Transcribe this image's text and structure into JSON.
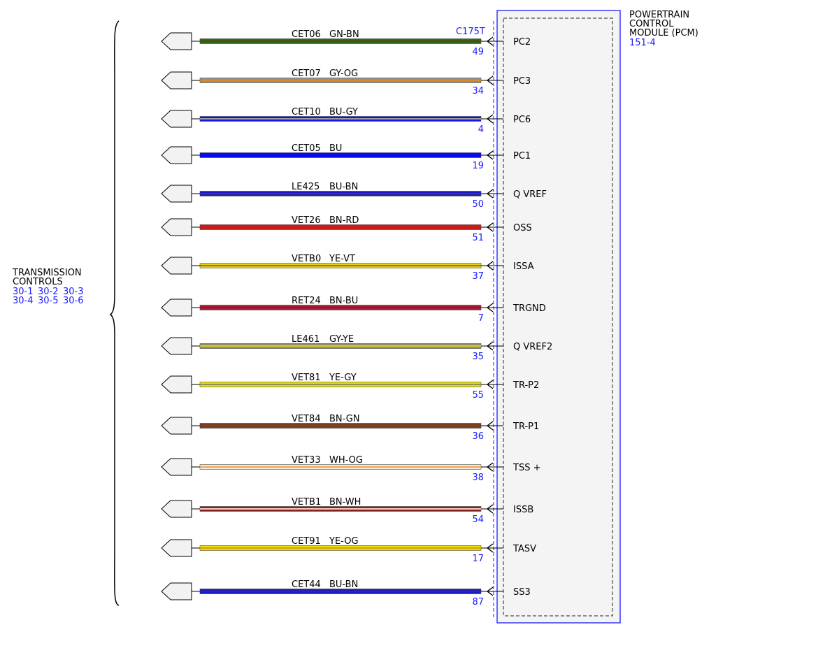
{
  "left_group": {
    "title_lines": [
      "TRANSMISSION",
      "CONTROLS"
    ],
    "ref_rows": [
      [
        "30-1",
        "30-2",
        "30-3"
      ],
      [
        "30-4",
        "30-5",
        "30-6"
      ]
    ]
  },
  "module": {
    "title_lines": [
      "POWERTRAIN",
      "CONTROL",
      "MODULE (PCM)"
    ],
    "ref": "151-4",
    "connector": "C175T"
  },
  "wires": [
    {
      "circuit": "CET06",
      "color_code": "GN-BN",
      "pin": "49",
      "signal": "PC2",
      "base": "#2e6b16",
      "stripe": "#6b3c1a"
    },
    {
      "circuit": "CET07",
      "color_code": "GY-OG",
      "pin": "34",
      "signal": "PC3",
      "base": "#8f8f8f",
      "stripe": "#d98a2b"
    },
    {
      "circuit": "CET10",
      "color_code": "BU-GY",
      "pin": "4",
      "signal": "PC6",
      "base": "#1414e6",
      "stripe": "#9a9a9a"
    },
    {
      "circuit": "CET05",
      "color_code": "BU",
      "pin": "19",
      "signal": "PC1",
      "base": "#0a0af0",
      "stripe": null
    },
    {
      "circuit": "LE425",
      "color_code": "BU-BN",
      "pin": "50",
      "signal": "Q VREF",
      "base": "#1a1acc",
      "stripe": "#5a3a1a"
    },
    {
      "circuit": "VET26",
      "color_code": "BN-RD",
      "pin": "51",
      "signal": "OSS",
      "base": "#cc1a1a",
      "stripe": null
    },
    {
      "circuit": "VETB0",
      "color_code": "YE-VT",
      "pin": "37",
      "signal": "ISSA",
      "base": "#e8d200",
      "stripe": "#8a5fb3"
    },
    {
      "circuit": "RET24",
      "color_code": "BN-BU",
      "pin": "7",
      "signal": "TRGND",
      "base": "#b01a2a",
      "stripe": "#2a2acc"
    },
    {
      "circuit": "LE461",
      "color_code": "GY-YE",
      "pin": "35",
      "signal": "Q VREF2",
      "base": "#8f8f6a",
      "stripe": "#d6cc33"
    },
    {
      "circuit": "VET81",
      "color_code": "YE-GY",
      "pin": "55",
      "signal": "TR-P2",
      "base": "#e8e000",
      "stripe": "#8f8f5a"
    },
    {
      "circuit": "VET84",
      "color_code": "BN-GN",
      "pin": "36",
      "signal": "TR-P1",
      "base": "#7a4020",
      "stripe": null
    },
    {
      "circuit": "VET33",
      "color_code": "WH-OG",
      "pin": "38",
      "signal": "TSS +",
      "base": "#f2ead6",
      "stripe": "#e8a860"
    },
    {
      "circuit": "VETB1",
      "color_code": "BN-WH",
      "pin": "54",
      "signal": "ISSB",
      "base": "#8a2020",
      "stripe": "#e8d0c8"
    },
    {
      "circuit": "CET91",
      "color_code": "YE-OG",
      "pin": "17",
      "signal": "TASV",
      "base": "#e8e000",
      "stripe": "#d8a000"
    },
    {
      "circuit": "CET44",
      "color_code": "BU-BN",
      "pin": "87",
      "signal": "SS3",
      "base": "#1a1acc",
      "stripe": "#3a2a6a"
    }
  ]
}
